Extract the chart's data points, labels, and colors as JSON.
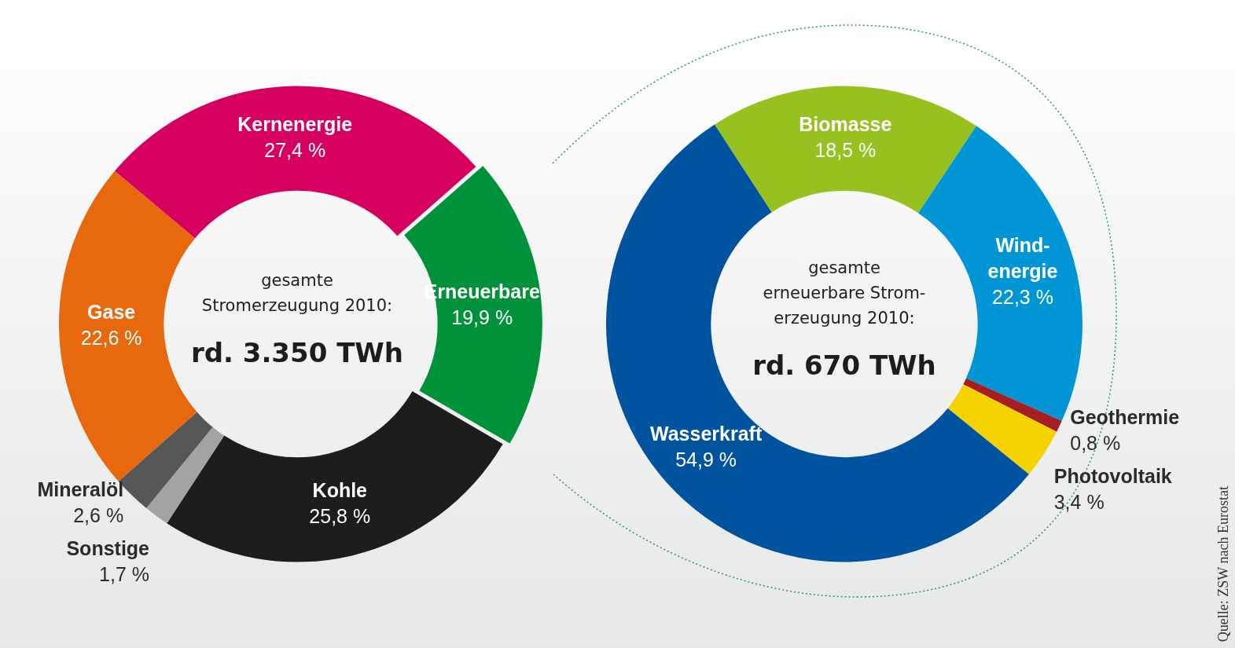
{
  "chart_data": [
    {
      "type": "donut",
      "categories": [
        "Kernenergie",
        "Erneuerbare",
        "Kohle",
        "Sonstige",
        "Mineralöl",
        "Gase"
      ],
      "values": [
        27.4,
        19.9,
        25.8,
        1.7,
        2.6,
        22.6
      ],
      "value_labels": [
        "27,4 %",
        "19,9 %",
        "25,8 %",
        "1,7 %",
        "2,6 %",
        "22,6 %"
      ],
      "colors": [
        "#d5005f",
        "#00923a",
        "#1d1d1b",
        "#a3a3a3",
        "#575757",
        "#e8680e"
      ],
      "annotations": [
        "gesamte\nStromerzeugung 2010:",
        "rd. 3.350 TWh"
      ]
    },
    {
      "type": "donut",
      "categories": [
        "Biomasse",
        "Wind-\nenergie",
        "Geothermie",
        "Photovoltaik",
        "Wasserkraft"
      ],
      "values": [
        18.5,
        22.3,
        0.8,
        3.4,
        54.9
      ],
      "value_labels": [
        "18,5 %",
        "22,3 %",
        "0,8 %",
        "3,4 %",
        "54,9 %"
      ],
      "colors": [
        "#96c11f",
        "#0096d6",
        "#a51e22",
        "#f5d300",
        "#00539f"
      ],
      "annotations": [
        "gesamte\nerneuerbare Strom-\nerzeugung 2010:",
        "rd. 670 TWh",
        "Quelle: ZSW nach Eurostat"
      ]
    }
  ]
}
